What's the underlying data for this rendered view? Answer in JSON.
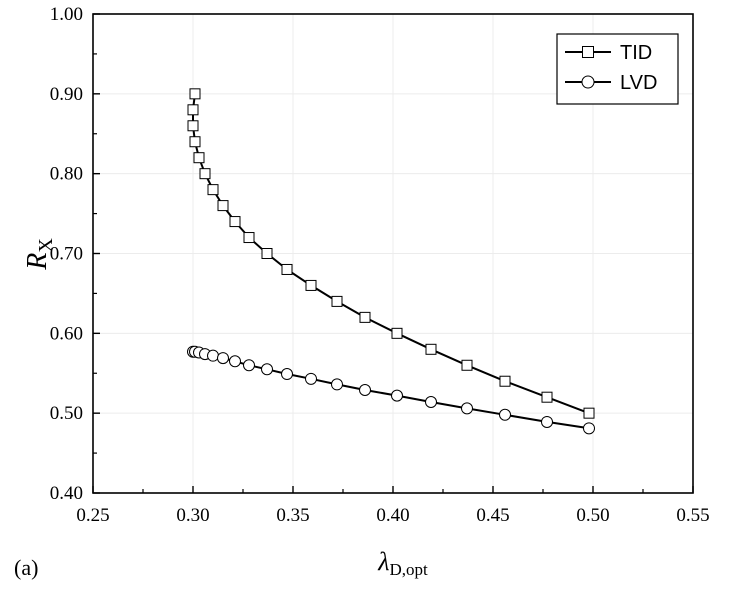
{
  "panel_label": "(a)",
  "chart_data": {
    "type": "line",
    "xlabel": "λ",
    "xlabel_sub": "D,opt",
    "ylabel": "R",
    "ylabel_sub": "X",
    "xlim": [
      0.25,
      0.55
    ],
    "ylim": [
      0.4,
      1.0
    ],
    "x_ticks": [
      "0.25",
      "0.30",
      "0.35",
      "0.40",
      "0.45",
      "0.50",
      "0.55"
    ],
    "y_ticks": [
      "0.40",
      "0.50",
      "0.60",
      "0.70",
      "0.80",
      "0.90",
      "1.00"
    ],
    "grid": true,
    "legend_position": "top-right",
    "series": [
      {
        "name": "TID",
        "marker": "square",
        "x": [
          0.301,
          0.3,
          0.3,
          0.301,
          0.303,
          0.306,
          0.31,
          0.315,
          0.321,
          0.328,
          0.337,
          0.347,
          0.359,
          0.372,
          0.386,
          0.402,
          0.419,
          0.437,
          0.456,
          0.477,
          0.498
        ],
        "y": [
          0.9,
          0.88,
          0.86,
          0.84,
          0.82,
          0.8,
          0.78,
          0.76,
          0.74,
          0.72,
          0.7,
          0.68,
          0.66,
          0.64,
          0.62,
          0.6,
          0.58,
          0.56,
          0.54,
          0.52,
          0.5
        ]
      },
      {
        "name": "LVD",
        "marker": "circle",
        "x": [
          0.3,
          0.301,
          0.303,
          0.306,
          0.31,
          0.315,
          0.321,
          0.328,
          0.337,
          0.347,
          0.359,
          0.372,
          0.386,
          0.402,
          0.419,
          0.437,
          0.456,
          0.477,
          0.498
        ],
        "y": [
          0.577,
          0.577,
          0.576,
          0.574,
          0.572,
          0.569,
          0.565,
          0.56,
          0.555,
          0.549,
          0.543,
          0.536,
          0.529,
          0.522,
          0.514,
          0.506,
          0.498,
          0.489,
          0.481
        ]
      }
    ]
  }
}
